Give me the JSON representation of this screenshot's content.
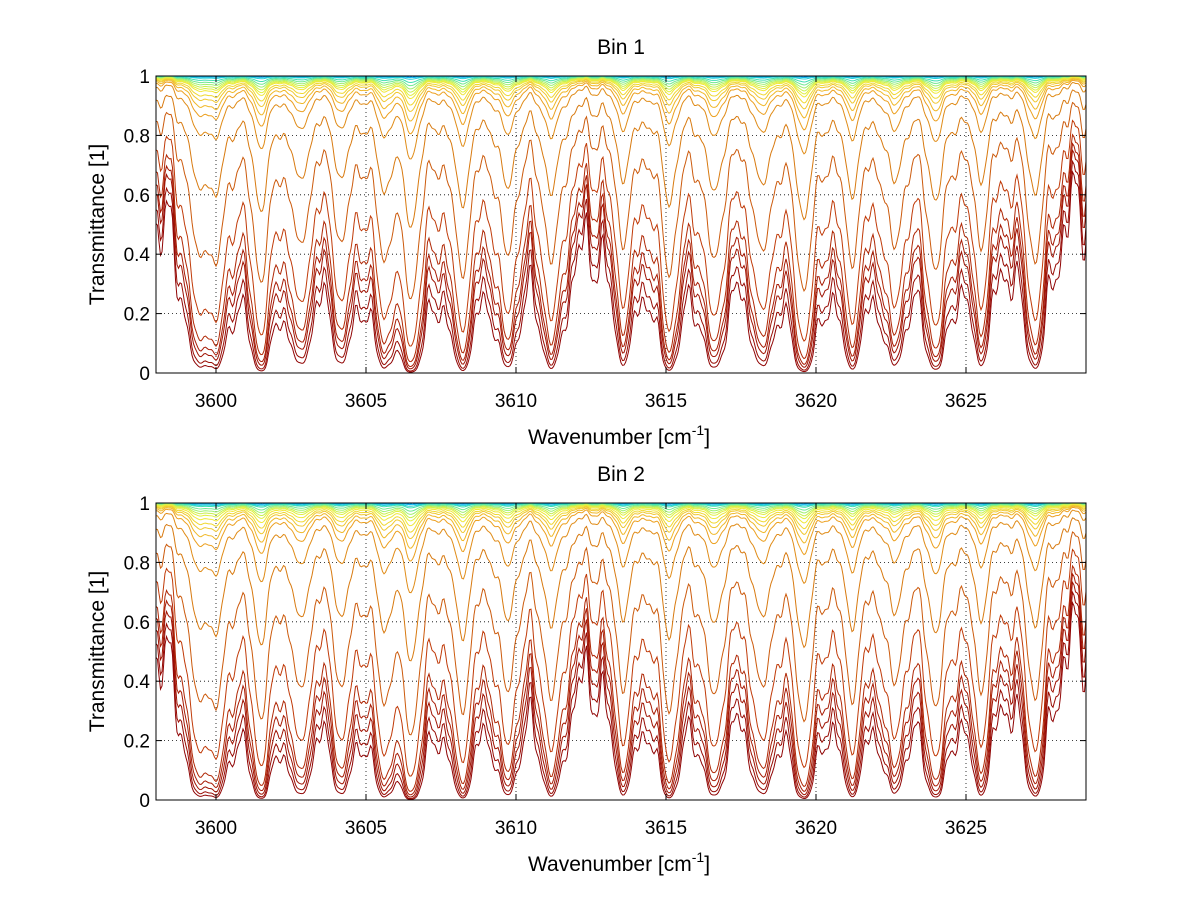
{
  "chart_data": [
    {
      "type": "line",
      "title": "Bin 1",
      "xlabel": "Wavenumber [cm",
      "xlabel_sup": "-1",
      "xlabel_end": "]",
      "ylabel": "Transmittance [1]",
      "xlim": [
        3598,
        3629
      ],
      "ylim": [
        0,
        1
      ],
      "x_ticks": [
        3600,
        3605,
        3610,
        3615,
        3620,
        3625
      ],
      "x_tick_labels": [
        "3600",
        "3605",
        "3610",
        "3615",
        "3620",
        "3625"
      ],
      "y_ticks": [
        0,
        0.2,
        0.4,
        0.6,
        0.8,
        1
      ],
      "y_tick_labels": [
        "0",
        "0.2",
        "0.4",
        "0.6",
        "0.8",
        "1"
      ],
      "grid": true,
      "line_centers": [
        3599.4,
        3600.0,
        3601.5,
        3602.8,
        3604.2,
        3605.6,
        3606.5,
        3608.2,
        3609.7,
        3611.2,
        3613.6,
        3615.1,
        3616.6,
        3618.2,
        3619.6,
        3621.2,
        3622.6,
        3624.0,
        3625.5,
        3627.3
      ],
      "line_strengths": [
        0.55,
        0.6,
        0.75,
        0.55,
        0.5,
        0.55,
        0.9,
        0.7,
        0.6,
        0.65,
        0.5,
        0.7,
        0.65,
        0.6,
        0.85,
        0.6,
        0.55,
        0.7,
        0.5,
        0.65
      ],
      "series_levels": [
        1.0,
        0.995,
        0.99,
        0.98,
        0.97,
        0.96,
        0.95,
        0.94,
        0.93,
        0.91,
        0.89,
        0.86,
        0.82,
        0.74,
        0.52,
        0.28,
        0.11,
        0.05,
        0.03,
        0.02,
        0.01,
        0.005
      ],
      "colors": [
        "#00a0ff",
        "#10b8f0",
        "#20d0d8",
        "#40e0b0",
        "#70e890",
        "#a0f070",
        "#c8f050",
        "#e0f040",
        "#f0e838",
        "#f0d830",
        "#f0c830",
        "#f0b828",
        "#eca020",
        "#e08c18",
        "#d87a10",
        "#cc5a0c",
        "#c03a08",
        "#b02806",
        "#a81c06",
        "#a01404",
        "#980c04",
        "#900404"
      ]
    },
    {
      "type": "line",
      "title": "Bin 2",
      "xlabel": "Wavenumber [cm",
      "xlabel_sup": "-1",
      "xlabel_end": "]",
      "ylabel": "Transmittance [1]",
      "xlim": [
        3598,
        3629
      ],
      "ylim": [
        0,
        1
      ],
      "x_ticks": [
        3600,
        3605,
        3610,
        3615,
        3620,
        3625
      ],
      "x_tick_labels": [
        "3600",
        "3605",
        "3610",
        "3615",
        "3620",
        "3625"
      ],
      "y_ticks": [
        0,
        0.2,
        0.4,
        0.6,
        0.8,
        1
      ],
      "y_tick_labels": [
        "0",
        "0.2",
        "0.4",
        "0.6",
        "0.8",
        "1"
      ],
      "grid": true,
      "line_centers": [
        3599.4,
        3600.0,
        3601.5,
        3602.8,
        3604.2,
        3605.6,
        3606.5,
        3608.2,
        3609.7,
        3611.2,
        3613.6,
        3615.1,
        3616.6,
        3618.2,
        3619.6,
        3621.2,
        3622.6,
        3624.0,
        3625.5,
        3627.3
      ],
      "line_strengths": [
        0.6,
        0.65,
        0.75,
        0.6,
        0.55,
        0.6,
        0.9,
        0.7,
        0.6,
        0.65,
        0.55,
        0.7,
        0.65,
        0.6,
        0.8,
        0.6,
        0.55,
        0.7,
        0.55,
        0.65
      ],
      "series_levels": [
        1.0,
        0.995,
        0.99,
        0.985,
        0.975,
        0.965,
        0.955,
        0.945,
        0.93,
        0.91,
        0.89,
        0.86,
        0.82,
        0.72,
        0.5,
        0.25,
        0.1,
        0.04,
        0.025,
        0.015,
        0.008,
        0.004
      ],
      "colors": [
        "#00a0ff",
        "#10b8f0",
        "#20d0d8",
        "#40e0b0",
        "#70e890",
        "#a0f070",
        "#c8f050",
        "#e0f040",
        "#f0e838",
        "#f0d830",
        "#f0c830",
        "#f0b828",
        "#eca020",
        "#e08c18",
        "#d87a10",
        "#cc5a0c",
        "#c03a08",
        "#b02806",
        "#a81c06",
        "#a01404",
        "#980c04",
        "#900404"
      ]
    }
  ]
}
